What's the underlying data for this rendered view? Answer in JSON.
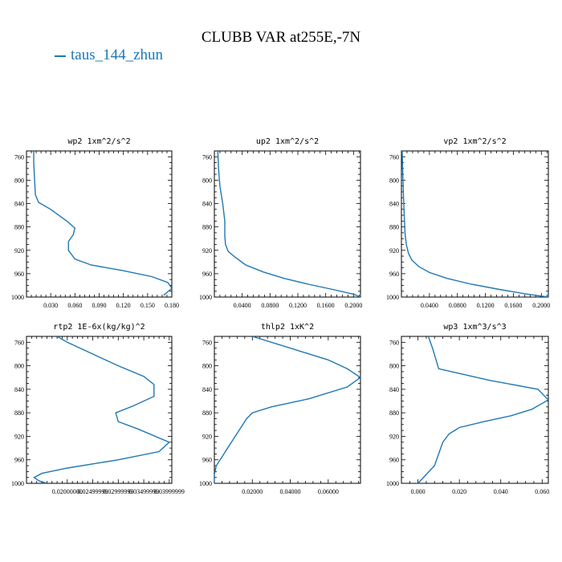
{
  "figure": {
    "title": "CLUBB VAR at255E,-7N",
    "legend": "taus_144_zhun",
    "line_color": "#1f77b4"
  },
  "chart_data": [
    {
      "type": "line",
      "title": "wp2  1xm^2/s^2",
      "xlim": [
        0.0,
        0.18
      ],
      "ylim": [
        1000,
        750
      ],
      "xticks": [
        0.03,
        0.06,
        0.09,
        0.12,
        0.15,
        0.18
      ],
      "xtick_labels": [
        "0.030",
        "0.060",
        "0.090",
        "0.120",
        "0.150",
        "0.180"
      ],
      "yticks": [
        760,
        800,
        840,
        880,
        920,
        960,
        1000
      ],
      "series": [
        {
          "x": [
            0.009,
            0.009,
            0.01,
            0.011,
            0.015,
            0.03,
            0.05,
            0.06,
            0.058,
            0.052,
            0.052,
            0.06,
            0.08,
            0.12,
            0.155,
            0.175,
            0.18,
            0.17
          ],
          "y": [
            750,
            770,
            800,
            825,
            838,
            850,
            870,
            882,
            893,
            905,
            920,
            935,
            945,
            955,
            965,
            975,
            985,
            997
          ]
        }
      ]
    },
    {
      "type": "line",
      "title": "up2  1xm^2/s^2",
      "xlim": [
        0.0,
        0.21
      ],
      "ylim": [
        1000,
        750
      ],
      "xticks": [
        0.04,
        0.08,
        0.12,
        0.16,
        0.2
      ],
      "xtick_labels": [
        "0.0400",
        "0.0800",
        "0.1200",
        "0.1600",
        "0.2000"
      ],
      "yticks": [
        760,
        800,
        840,
        880,
        920,
        960,
        1000
      ],
      "series": [
        {
          "x": [
            0.005,
            0.006,
            0.008,
            0.012,
            0.015,
            0.015,
            0.016,
            0.02,
            0.03,
            0.045,
            0.07,
            0.1,
            0.135,
            0.17,
            0.2,
            0.21
          ],
          "y": [
            750,
            780,
            810,
            840,
            870,
            895,
            910,
            922,
            932,
            945,
            957,
            968,
            978,
            987,
            995,
            1000
          ]
        }
      ]
    },
    {
      "type": "line",
      "title": "vp2  1xm^2/s^2",
      "xlim": [
        0.0,
        0.21
      ],
      "ylim": [
        1000,
        750
      ],
      "xticks": [
        0.04,
        0.08,
        0.12,
        0.16,
        0.2
      ],
      "xtick_labels": [
        "0.0400",
        "0.0800",
        "0.1200",
        "0.1600",
        "0.2000"
      ],
      "yticks": [
        760,
        800,
        840,
        880,
        920,
        960,
        1000
      ],
      "series": [
        {
          "x": [
            0.001,
            0.002,
            0.003,
            0.004,
            0.005,
            0.007,
            0.01,
            0.015,
            0.025,
            0.04,
            0.065,
            0.1,
            0.14,
            0.18,
            0.21
          ],
          "y": [
            750,
            790,
            830,
            860,
            890,
            910,
            925,
            937,
            948,
            958,
            968,
            978,
            987,
            995,
            1000
          ]
        }
      ]
    },
    {
      "type": "line",
      "title": "rtp2  1E-6x(kg/kg)^2",
      "xlim": [
        0.012,
        0.0405
      ],
      "ylim": [
        1000,
        750
      ],
      "xticks": [
        0.02,
        0.025,
        0.03,
        0.035,
        0.04
      ],
      "xtick_labels": [
        "0.02000000",
        "0.02499999",
        "0.02999999",
        "0.03499999",
        "0.03999999"
      ],
      "yticks": [
        760,
        800,
        840,
        880,
        920,
        960,
        1000
      ],
      "series": [
        {
          "x": [
            0.018,
            0.02,
            0.025,
            0.03,
            0.035,
            0.037,
            0.037,
            0.033,
            0.0295,
            0.03,
            0.034,
            0.04,
            0.038,
            0.03,
            0.02,
            0.015,
            0.0135,
            0.0145,
            0.016
          ],
          "y": [
            750,
            760,
            780,
            800,
            818,
            832,
            852,
            868,
            880,
            895,
            908,
            930,
            946,
            960,
            974,
            983,
            990,
            996,
            1000
          ]
        }
      ]
    },
    {
      "type": "line",
      "title": "thlp2  1xK^2",
      "xlim": [
        0.0,
        0.077
      ],
      "ylim": [
        1000,
        750
      ],
      "xticks": [
        0.02,
        0.04,
        0.06
      ],
      "xtick_labels": [
        "0.02000",
        "0.04000",
        "0.06000"
      ],
      "yticks": [
        760,
        800,
        840,
        880,
        920,
        960,
        1000
      ],
      "series": [
        {
          "x": [
            0.02,
            0.04,
            0.06,
            0.07,
            0.077,
            0.07,
            0.05,
            0.03,
            0.02,
            0.017,
            0.015,
            0.012,
            0.008,
            0.004,
            0.001,
            0.0,
            0.0
          ],
          "y": [
            750,
            770,
            790,
            805,
            820,
            836,
            856,
            870,
            880,
            890,
            900,
            915,
            935,
            955,
            970,
            985,
            1000
          ]
        }
      ]
    },
    {
      "type": "line",
      "title": "wp3  1xm^3/s^3",
      "xlim": [
        -0.008,
        0.063
      ],
      "ylim": [
        1000,
        750
      ],
      "xticks": [
        0.0,
        0.02,
        0.04,
        0.06
      ],
      "xtick_labels": [
        "0.000",
        "0.020",
        "0.040",
        "0.060"
      ],
      "yticks": [
        760,
        800,
        840,
        880,
        920,
        960,
        1000
      ],
      "series": [
        {
          "x": [
            0.005,
            0.007,
            0.01,
            0.035,
            0.058,
            0.063,
            0.055,
            0.045,
            0.032,
            0.02,
            0.015,
            0.012,
            0.01,
            0.008,
            0.004,
            0.0
          ],
          "y": [
            750,
            770,
            805,
            825,
            840,
            858,
            874,
            885,
            895,
            905,
            916,
            930,
            950,
            970,
            985,
            1000
          ]
        }
      ]
    }
  ]
}
